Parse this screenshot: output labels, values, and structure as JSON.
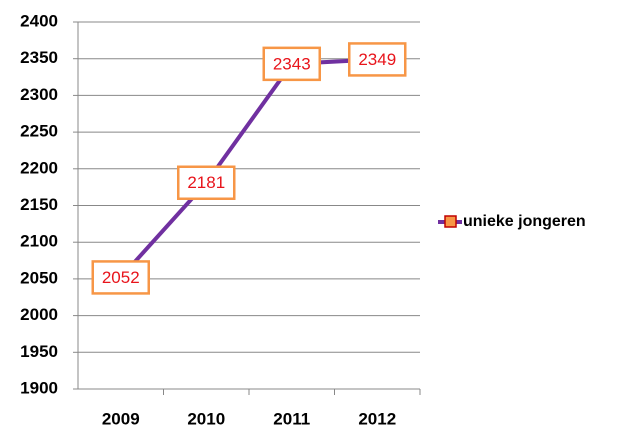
{
  "chart_data": {
    "type": "line",
    "categories": [
      "2009",
      "2010",
      "2011",
      "2012"
    ],
    "series": [
      {
        "name": "unieke jongeren",
        "color": "#7030a0",
        "marker_color": "#f79646",
        "values": [
          2052,
          2181,
          2343,
          2349
        ]
      }
    ],
    "ylim": [
      1900,
      2400
    ],
    "yticks": [
      1900,
      1950,
      2000,
      2050,
      2100,
      2150,
      2200,
      2250,
      2300,
      2350,
      2400
    ],
    "grid": true,
    "legend": "right"
  }
}
